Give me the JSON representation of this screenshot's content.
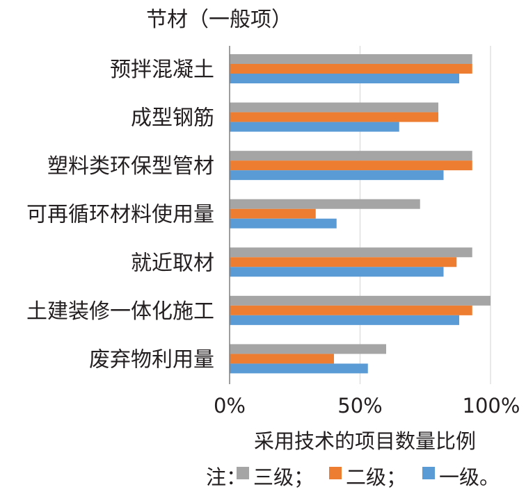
{
  "chart_data": {
    "type": "bar",
    "orientation": "horizontal",
    "title": "节材（一般项）",
    "xlabel": "采用技术的项目数量比例",
    "ylabel": "",
    "xlim": [
      0,
      100
    ],
    "x_ticks": [
      "0%",
      "50%",
      "100%"
    ],
    "grid": true,
    "categories": [
      "预拌混凝土",
      "成型钢筋",
      "塑料类环保型管材",
      "可再循环材料使用量",
      "就近取材",
      "土建装修一体化施工",
      "废弃物利用量"
    ],
    "series": [
      {
        "name": "三级",
        "color": "#a5a5a5",
        "values": [
          93,
          80,
          93,
          73,
          93,
          100,
          60
        ]
      },
      {
        "name": "二级",
        "color": "#ed7d31",
        "values": [
          93,
          80,
          93,
          33,
          87,
          93,
          40
        ]
      },
      {
        "name": "一级",
        "color": "#5b9bd5",
        "values": [
          88,
          65,
          82,
          41,
          82,
          88,
          53
        ]
      }
    ],
    "legend": {
      "prefix": "注：",
      "labels": [
        "三级；",
        "二级；",
        "一级。"
      ],
      "placement": "bottom"
    }
  }
}
